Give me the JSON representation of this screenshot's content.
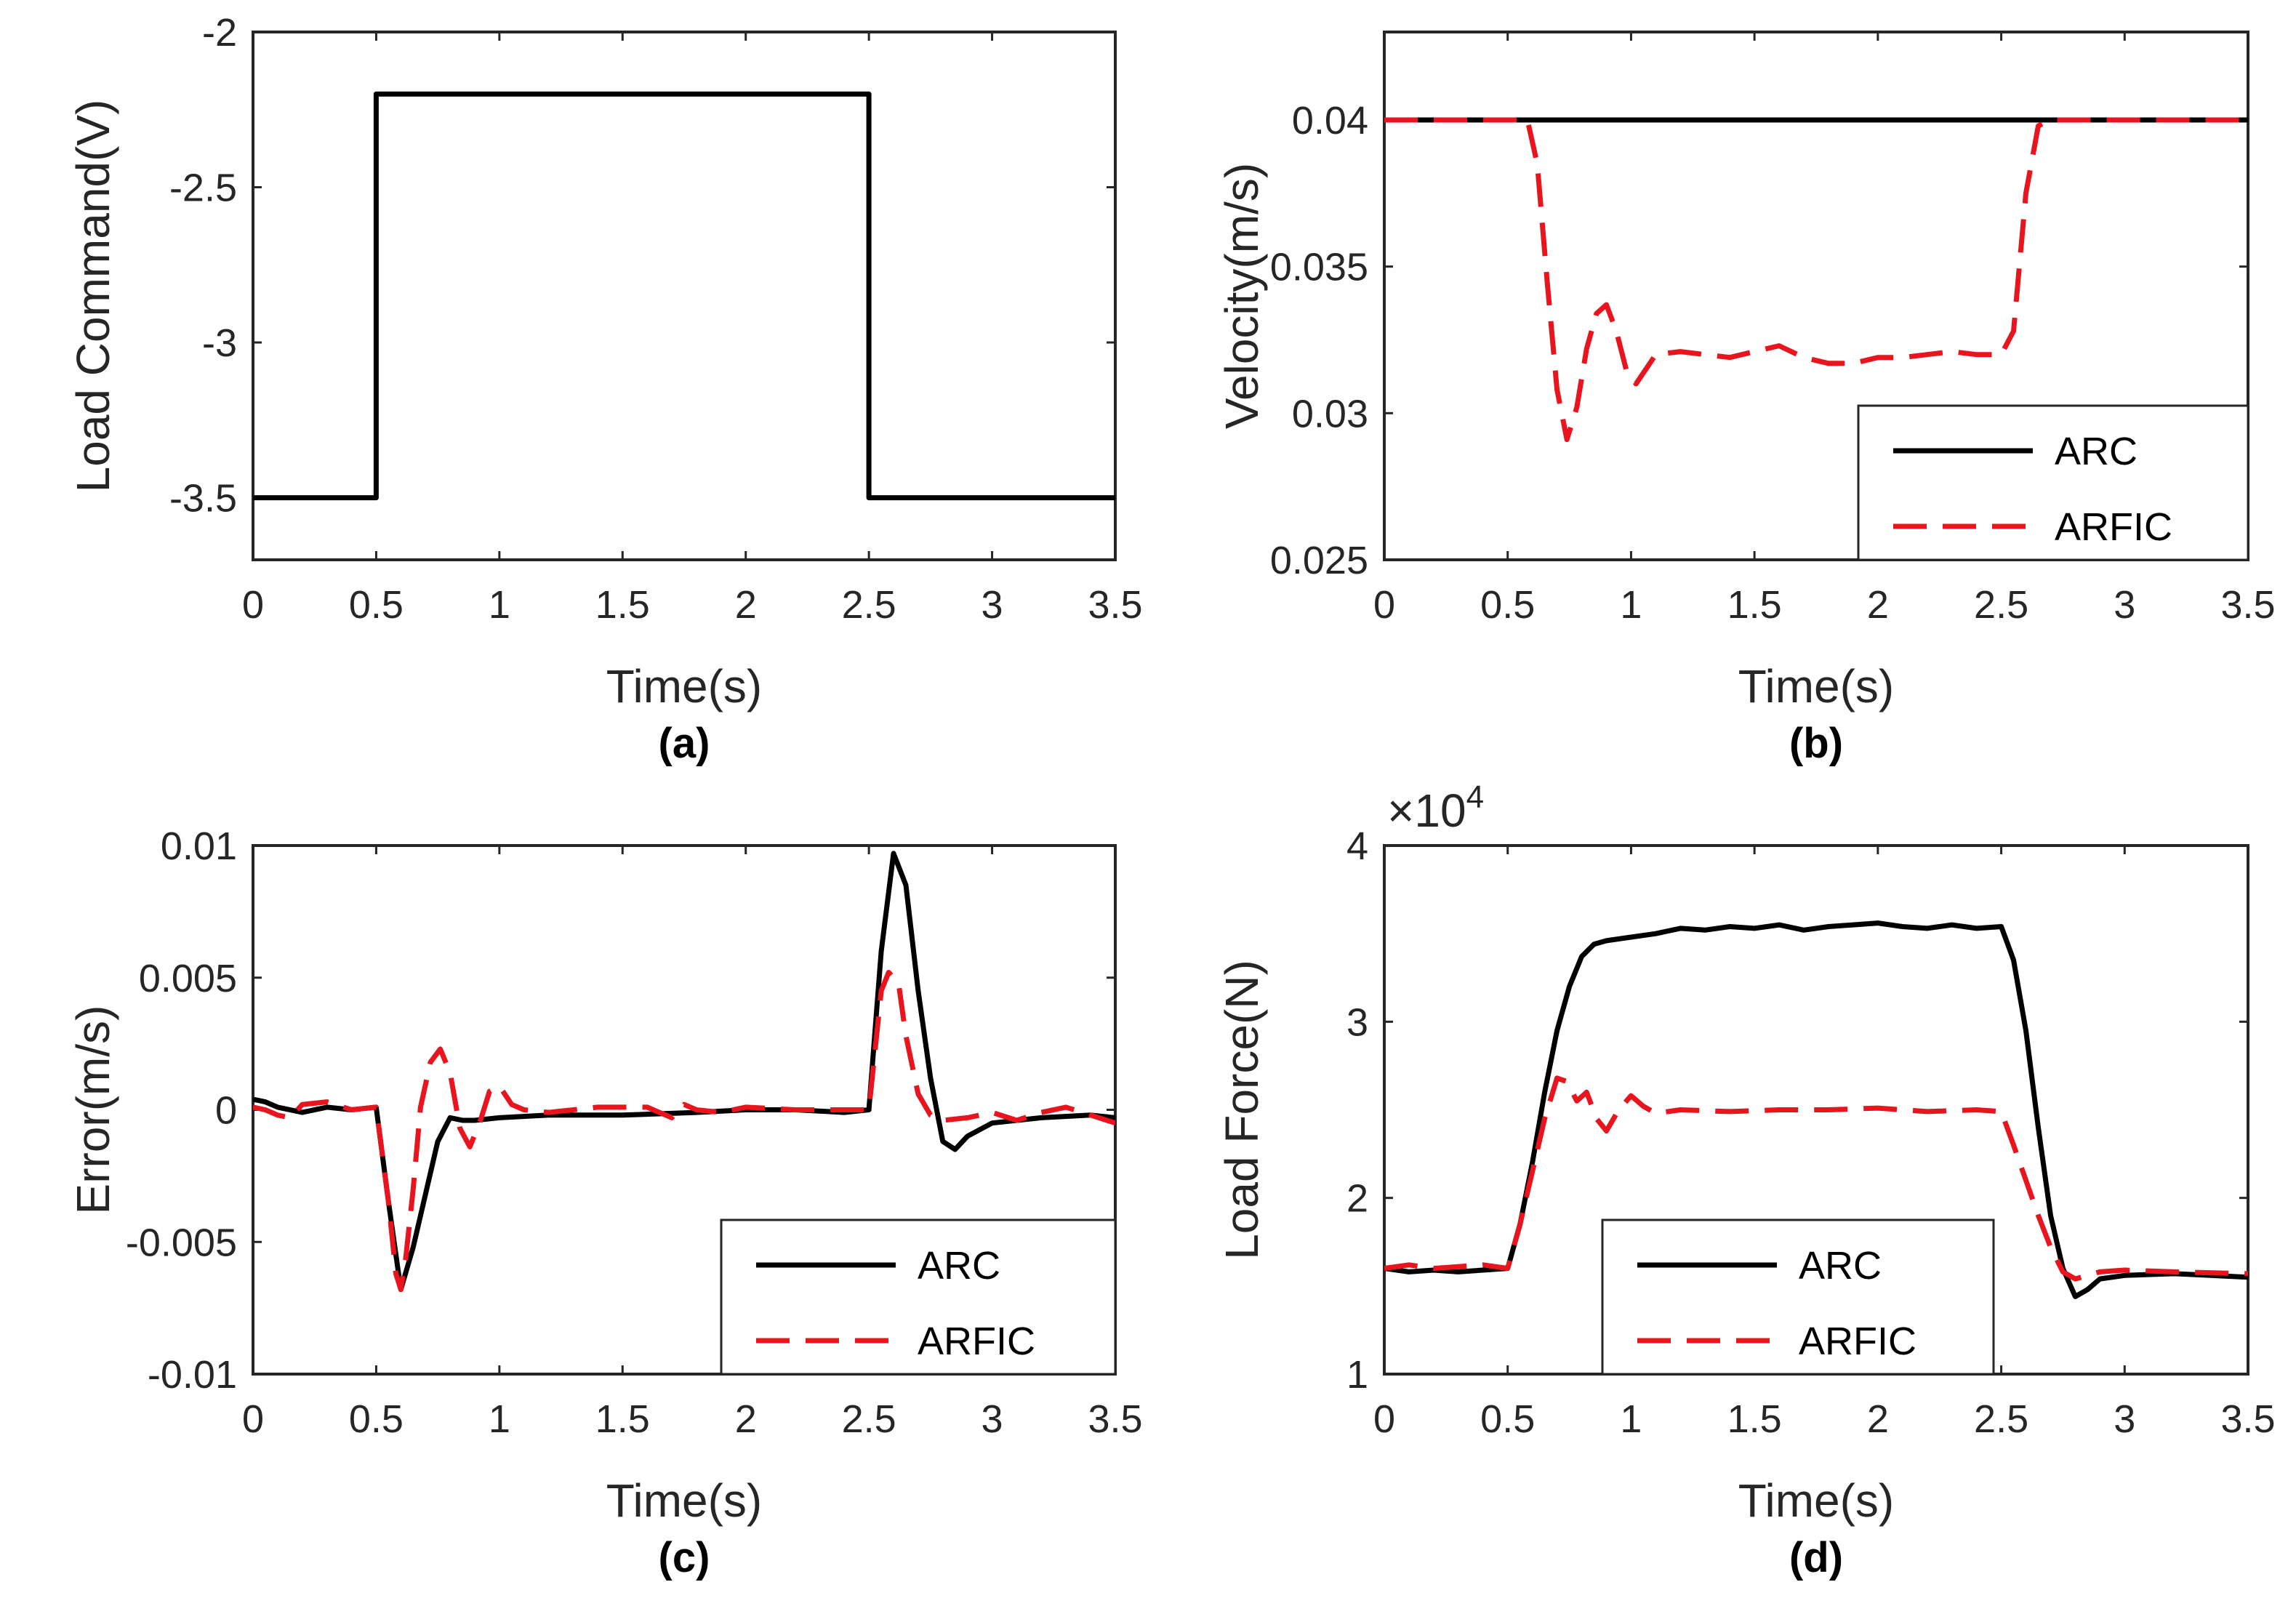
{
  "colors": {
    "arc": "#000000",
    "arfic": "#e8141e",
    "axis": "#262626"
  },
  "chart_data": [
    {
      "id": "a",
      "type": "line",
      "caption": "(a)",
      "xlabel": "Time(s)",
      "ylabel": "Load Command(V)",
      "xlim": [
        0,
        3.5
      ],
      "ylim": [
        -3.7,
        -2
      ],
      "xticks": [
        0,
        0.5,
        1,
        1.5,
        2,
        2.5,
        3,
        3.5
      ],
      "xtick_labels": [
        "0",
        "0.5",
        "1",
        "1.5",
        "2",
        "2.5",
        "3",
        "3.5"
      ],
      "yticks": [
        -3.5,
        -3,
        -2.5,
        -2
      ],
      "ytick_labels": [
        "-3.5",
        "-3",
        "-2.5",
        "-2"
      ],
      "series": [
        {
          "name": "Load command",
          "style": "solid",
          "color": "#000000",
          "x": [
            0,
            0.5,
            0.5,
            2.5,
            2.5,
            3.5
          ],
          "y": [
            -3.5,
            -3.5,
            -2.2,
            -2.2,
            -3.5,
            -3.5
          ]
        }
      ]
    },
    {
      "id": "b",
      "type": "line",
      "caption": "(b)",
      "xlabel": "Time(s)",
      "ylabel": "Velocity(m/s)",
      "xlim": [
        0,
        3.5
      ],
      "ylim": [
        0.025,
        0.043
      ],
      "xticks": [
        0,
        0.5,
        1,
        1.5,
        2,
        2.5,
        3,
        3.5
      ],
      "xtick_labels": [
        "0",
        "0.5",
        "1",
        "1.5",
        "2",
        "2.5",
        "3",
        "3.5"
      ],
      "yticks": [
        0.025,
        0.03,
        0.035,
        0.04
      ],
      "ytick_labels": [
        "0.025",
        "0.03",
        "0.035",
        "0.04"
      ],
      "legend": {
        "position": "bottom-right",
        "entries": [
          "ARC",
          "ARFIC"
        ]
      },
      "series": [
        {
          "name": "ARC",
          "style": "solid",
          "color": "#000000",
          "x": [
            0,
            3.5
          ],
          "y": [
            0.04,
            0.04
          ]
        },
        {
          "name": "ARFIC",
          "style": "dashed",
          "color": "#e8141e",
          "x": [
            0,
            0.58,
            0.62,
            0.66,
            0.7,
            0.74,
            0.78,
            0.82,
            0.86,
            0.9,
            0.94,
            0.98,
            1.02,
            1.06,
            1.1,
            1.2,
            1.3,
            1.4,
            1.5,
            1.6,
            1.7,
            1.8,
            1.9,
            2.0,
            2.1,
            2.2,
            2.3,
            2.4,
            2.5,
            2.55,
            2.6,
            2.65,
            2.7,
            2.8,
            3.5
          ],
          "y": [
            0.04,
            0.04,
            0.0385,
            0.0345,
            0.0308,
            0.0291,
            0.0302,
            0.0322,
            0.0334,
            0.0337,
            0.0328,
            0.0315,
            0.031,
            0.0315,
            0.032,
            0.0321,
            0.032,
            0.0319,
            0.0321,
            0.0323,
            0.0319,
            0.0317,
            0.0317,
            0.0319,
            0.0319,
            0.032,
            0.0321,
            0.032,
            0.032,
            0.0328,
            0.0375,
            0.0398,
            0.04,
            0.04,
            0.04
          ]
        }
      ]
    },
    {
      "id": "c",
      "type": "line",
      "caption": "(c)",
      "xlabel": "Time(s)",
      "ylabel": "Error(m/s)",
      "xlim": [
        0,
        3.5
      ],
      "ylim": [
        -0.01,
        0.01
      ],
      "xticks": [
        0,
        0.5,
        1,
        1.5,
        2,
        2.5,
        3,
        3.5
      ],
      "xtick_labels": [
        "0",
        "0.5",
        "1",
        "1.5",
        "2",
        "2.5",
        "3",
        "3.5"
      ],
      "yticks": [
        -0.01,
        -0.005,
        0,
        0.005,
        0.01
      ],
      "ytick_labels": [
        "-0.01",
        "-0.005",
        "0",
        "0.005",
        "0.01"
      ],
      "legend": {
        "position": "bottom-right",
        "entries": [
          "ARC",
          "ARFIC"
        ]
      },
      "series": [
        {
          "name": "ARC",
          "style": "solid",
          "color": "#000000",
          "x": [
            0,
            0.05,
            0.1,
            0.2,
            0.3,
            0.4,
            0.5,
            0.55,
            0.6,
            0.65,
            0.7,
            0.75,
            0.8,
            0.85,
            0.9,
            1.0,
            1.2,
            1.5,
            1.8,
            2.0,
            2.2,
            2.4,
            2.5,
            2.55,
            2.6,
            2.65,
            2.7,
            2.75,
            2.8,
            2.85,
            2.9,
            3.0,
            3.2,
            3.4,
            3.5
          ],
          "y": [
            0.0004,
            0.0003,
            0.0001,
            -0.0001,
            0.0001,
            0.0,
            0.0001,
            -0.0035,
            -0.0068,
            -0.0052,
            -0.0032,
            -0.0012,
            -0.0003,
            -0.0004,
            -0.0004,
            -0.0003,
            -0.0002,
            -0.0002,
            -0.0001,
            0.0,
            0.0,
            -0.0001,
            0.0,
            0.006,
            0.0097,
            0.0085,
            0.0045,
            0.0012,
            -0.0012,
            -0.0015,
            -0.001,
            -0.0005,
            -0.0003,
            -0.0002,
            -0.0003
          ]
        },
        {
          "name": "ARFIC",
          "style": "dashed",
          "color": "#e8141e",
          "x": [
            0,
            0.05,
            0.1,
            0.15,
            0.2,
            0.3,
            0.4,
            0.5,
            0.55,
            0.58,
            0.6,
            0.62,
            0.65,
            0.68,
            0.72,
            0.76,
            0.8,
            0.84,
            0.88,
            0.92,
            0.96,
            1.0,
            1.05,
            1.1,
            1.2,
            1.4,
            1.6,
            1.7,
            1.75,
            1.8,
            1.9,
            2.0,
            2.2,
            2.4,
            2.5,
            2.55,
            2.58,
            2.62,
            2.65,
            2.7,
            2.75,
            2.8,
            2.9,
            3.0,
            3.1,
            3.2,
            3.3,
            3.4,
            3.5
          ],
          "y": [
            0.0001,
            0.0,
            -0.0002,
            -0.0003,
            0.0002,
            0.0003,
            0.0,
            0.0001,
            -0.0035,
            -0.0062,
            -0.0068,
            -0.0056,
            -0.003,
            0.0001,
            0.0018,
            0.0023,
            0.0014,
            -0.0007,
            -0.0014,
            -0.0005,
            0.0007,
            0.0009,
            0.0002,
            0.0,
            -0.0001,
            0.0001,
            0.0001,
            -0.0003,
            0.0002,
            0.0,
            -0.0001,
            0.0001,
            0.0,
            0.0,
            0.0,
            0.0045,
            0.0052,
            0.0048,
            0.0028,
            0.0006,
            -0.0002,
            -0.0004,
            -0.0003,
            -0.0001,
            -0.0004,
            -0.0001,
            0.0001,
            -0.0002,
            -0.0005
          ]
        }
      ]
    },
    {
      "id": "d",
      "type": "line",
      "caption": "(d)",
      "xlabel": "Time(s)",
      "ylabel": "Load Force(N)",
      "exponent_label": "×10",
      "exponent_power": "4",
      "xlim": [
        0,
        3.5
      ],
      "ylim": [
        1,
        4
      ],
      "xticks": [
        0,
        0.5,
        1,
        1.5,
        2,
        2.5,
        3,
        3.5
      ],
      "xtick_labels": [
        "0",
        "0.5",
        "1",
        "1.5",
        "2",
        "2.5",
        "3",
        "3.5"
      ],
      "yticks": [
        1,
        2,
        3,
        4
      ],
      "ytick_labels": [
        "1",
        "2",
        "3",
        "4"
      ],
      "legend": {
        "position": "bottom-center",
        "entries": [
          "ARC",
          "ARFIC"
        ]
      },
      "series": [
        {
          "name": "ARC",
          "style": "solid",
          "color": "#000000",
          "x": [
            0,
            0.1,
            0.2,
            0.3,
            0.4,
            0.5,
            0.55,
            0.6,
            0.65,
            0.7,
            0.75,
            0.8,
            0.85,
            0.9,
            1.0,
            1.1,
            1.2,
            1.3,
            1.4,
            1.5,
            1.6,
            1.7,
            1.8,
            1.9,
            2.0,
            2.1,
            2.2,
            2.3,
            2.4,
            2.5,
            2.55,
            2.6,
            2.65,
            2.7,
            2.75,
            2.8,
            2.85,
            2.9,
            3.0,
            3.2,
            3.5
          ],
          "y": [
            1.6,
            1.58,
            1.59,
            1.58,
            1.59,
            1.6,
            1.85,
            2.2,
            2.6,
            2.95,
            3.2,
            3.37,
            3.44,
            3.46,
            3.48,
            3.5,
            3.53,
            3.52,
            3.54,
            3.53,
            3.55,
            3.52,
            3.54,
            3.55,
            3.56,
            3.54,
            3.53,
            3.55,
            3.53,
            3.54,
            3.35,
            2.95,
            2.4,
            1.9,
            1.6,
            1.44,
            1.48,
            1.54,
            1.56,
            1.57,
            1.55
          ]
        },
        {
          "name": "ARFIC",
          "style": "dashed",
          "color": "#e8141e",
          "x": [
            0,
            0.1,
            0.2,
            0.3,
            0.4,
            0.5,
            0.55,
            0.6,
            0.65,
            0.7,
            0.74,
            0.78,
            0.82,
            0.86,
            0.9,
            0.95,
            1.0,
            1.05,
            1.1,
            1.2,
            1.4,
            1.6,
            1.8,
            2.0,
            2.2,
            2.4,
            2.5,
            2.55,
            2.6,
            2.65,
            2.7,
            2.75,
            2.8,
            2.9,
            3.0,
            3.2,
            3.5
          ],
          "y": [
            1.6,
            1.62,
            1.6,
            1.61,
            1.62,
            1.6,
            1.85,
            2.15,
            2.45,
            2.68,
            2.66,
            2.55,
            2.6,
            2.45,
            2.38,
            2.5,
            2.58,
            2.52,
            2.48,
            2.5,
            2.49,
            2.5,
            2.5,
            2.51,
            2.49,
            2.5,
            2.49,
            2.3,
            2.1,
            1.9,
            1.72,
            1.58,
            1.54,
            1.58,
            1.59,
            1.58,
            1.57
          ]
        }
      ]
    }
  ]
}
